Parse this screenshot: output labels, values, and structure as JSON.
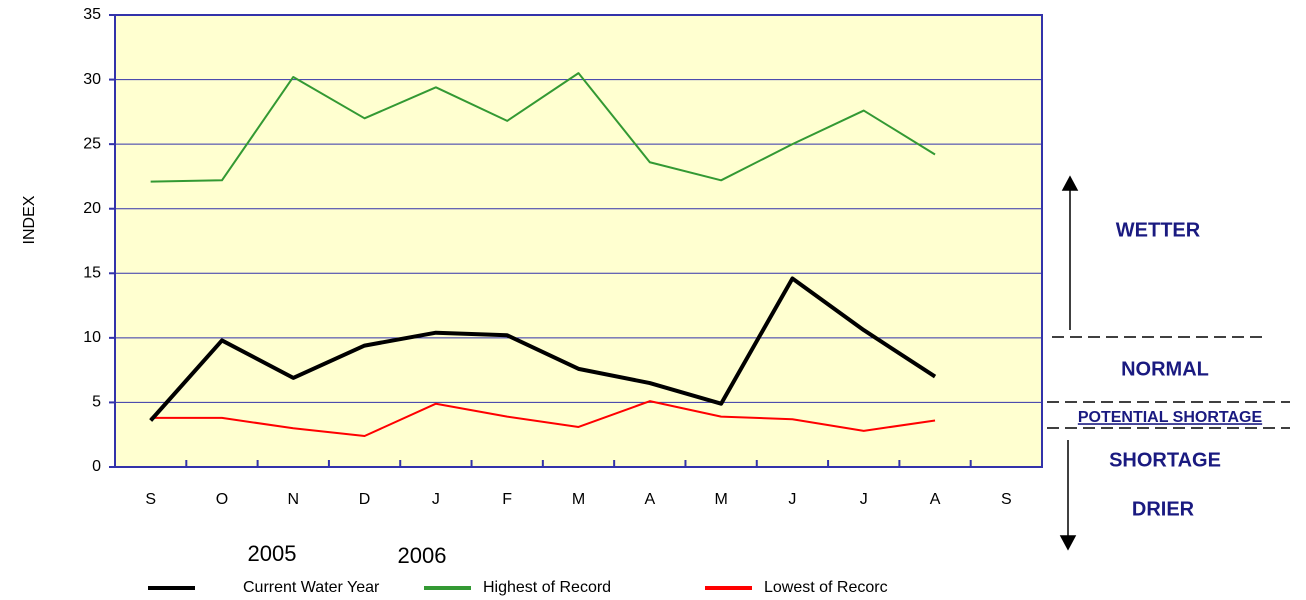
{
  "chart_data": {
    "type": "line",
    "y_label": "INDEX",
    "categories": [
      "S",
      "O",
      "N",
      "D",
      "J",
      "F",
      "M",
      "A",
      "M",
      "J",
      "J",
      "A",
      "S"
    ],
    "series": [
      {
        "name": "Current Water Year",
        "color": "#000000",
        "values": [
          3.6,
          9.8,
          6.9,
          9.4,
          10.4,
          10.2,
          7.6,
          6.5,
          4.9,
          14.6,
          10.6,
          7.0,
          null
        ]
      },
      {
        "name": "Highest of Record",
        "color": "#339933",
        "values": [
          22.1,
          22.2,
          30.2,
          27.0,
          29.4,
          26.8,
          30.5,
          23.6,
          22.2,
          25.0,
          27.6,
          24.2,
          null
        ]
      },
      {
        "name": "Lowest of Recorc",
        "color": "#ff0000",
        "values": [
          3.8,
          3.8,
          3.0,
          2.4,
          4.9,
          3.9,
          3.1,
          5.1,
          3.9,
          3.7,
          2.8,
          3.6,
          null
        ]
      }
    ],
    "ylim": [
      0,
      35
    ],
    "yticks": [
      0,
      5,
      10,
      15,
      20,
      25,
      30,
      35
    ],
    "grid": true,
    "year_labels": [
      "2005",
      "2006"
    ],
    "annotations": [
      "WETTER",
      "NORMAL",
      "POTENTIAL SHORTAGE",
      "SHORTAGE",
      "DRIER"
    ]
  }
}
